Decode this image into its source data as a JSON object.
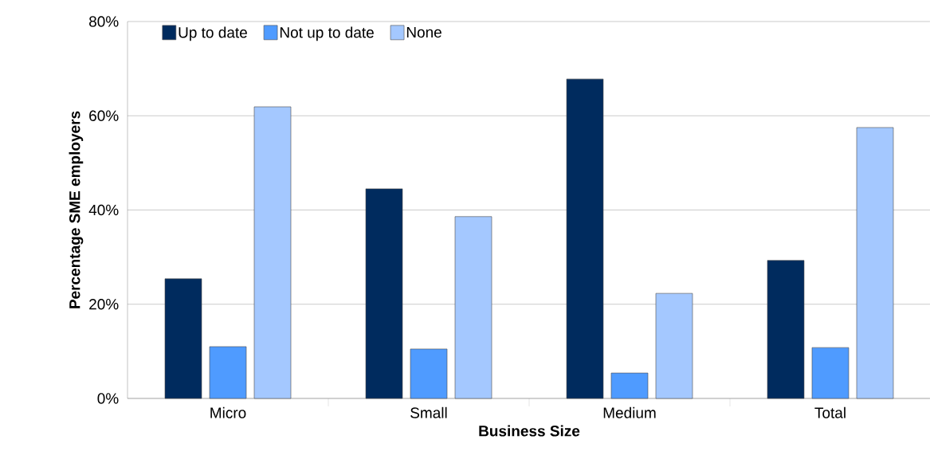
{
  "chart_data": {
    "type": "bar",
    "xlabel": "Business Size",
    "ylabel": "Percentage SME employers",
    "categories": [
      "Micro",
      "Small",
      "Medium",
      "Total"
    ],
    "series": [
      {
        "name": "Up to date",
        "color": "#002b5e",
        "values": [
          25.4,
          44.5,
          67.8,
          29.3
        ]
      },
      {
        "name": "Not up to date",
        "color": "#4f9bff",
        "values": [
          11.0,
          10.5,
          5.4,
          10.8
        ]
      },
      {
        "name": "None",
        "color": "#a4c8ff",
        "values": [
          61.9,
          38.6,
          22.3,
          57.5
        ]
      }
    ],
    "ylim": [
      0,
      80
    ],
    "yticks": [
      {
        "value": 0,
        "label": "0%"
      },
      {
        "value": 20,
        "label": "20%"
      },
      {
        "value": 40,
        "label": "40%"
      },
      {
        "value": 60,
        "label": "60%"
      },
      {
        "value": 80,
        "label": "80%"
      }
    ],
    "grid": "y",
    "legend": "top left"
  }
}
